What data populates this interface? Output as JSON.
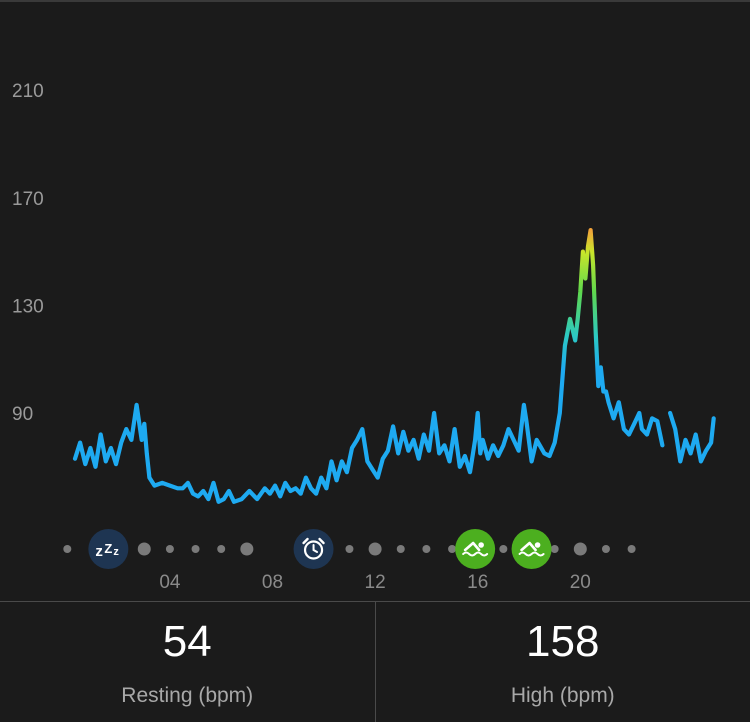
{
  "chart_data": {
    "type": "line",
    "y_ticks": [
      "210",
      "170",
      "130",
      "90"
    ],
    "y_tick_values": [
      210,
      170,
      130,
      90
    ],
    "x_ticks": [
      "04",
      "08",
      "12",
      "16",
      "20"
    ],
    "x_tick_hours": [
      4,
      8,
      12,
      16,
      20
    ],
    "ylim": [
      40,
      225
    ],
    "xlim_hours": [
      0,
      24
    ],
    "series": [
      {
        "segments": [
          [
            [
              0.3,
              73
            ],
            [
              0.5,
              79
            ],
            [
              0.7,
              71
            ],
            [
              0.9,
              77
            ],
            [
              1.1,
              70
            ],
            [
              1.3,
              82
            ],
            [
              1.5,
              72
            ],
            [
              1.7,
              77
            ],
            [
              1.9,
              71
            ],
            [
              2.1,
              79
            ],
            [
              2.3,
              84
            ],
            [
              2.5,
              80
            ],
            [
              2.7,
              93
            ],
            [
              2.9,
              80
            ],
            [
              3.0,
              86
            ],
            [
              3.1,
              75
            ],
            [
              3.2,
              66
            ],
            [
              3.4,
              63
            ],
            [
              3.7,
              64
            ],
            [
              4.0,
              63
            ],
            [
              4.3,
              62
            ],
            [
              4.5,
              62
            ],
            [
              4.7,
              64
            ],
            [
              4.9,
              60
            ],
            [
              5.1,
              59
            ],
            [
              5.3,
              61
            ],
            [
              5.5,
              58
            ],
            [
              5.7,
              64
            ],
            [
              5.9,
              57
            ],
            [
              6.1,
              58
            ],
            [
              6.3,
              61
            ],
            [
              6.5,
              57
            ],
            [
              6.8,
              58
            ],
            [
              7.1,
              61
            ],
            [
              7.4,
              58
            ],
            [
              7.7,
              62
            ],
            [
              7.9,
              60
            ],
            [
              8.1,
              63
            ],
            [
              8.3,
              59
            ],
            [
              8.5,
              64
            ],
            [
              8.7,
              61
            ],
            [
              8.9,
              62
            ],
            [
              9.1,
              60
            ],
            [
              9.3,
              66
            ],
            [
              9.5,
              62
            ],
            [
              9.7,
              60
            ],
            [
              9.9,
              66
            ],
            [
              10.1,
              62
            ],
            [
              10.3,
              72
            ],
            [
              10.5,
              65
            ],
            [
              10.7,
              72
            ],
            [
              10.9,
              68
            ],
            [
              11.1,
              77
            ],
            [
              11.3,
              80
            ],
            [
              11.5,
              84
            ],
            [
              11.7,
              72
            ],
            [
              11.9,
              69
            ],
            [
              12.1,
              66
            ],
            [
              12.3,
              73
            ],
            [
              12.5,
              76
            ],
            [
              12.7,
              85
            ],
            [
              12.9,
              75
            ],
            [
              13.1,
              83
            ],
            [
              13.3,
              76
            ],
            [
              13.5,
              80
            ],
            [
              13.7,
              73
            ],
            [
              13.9,
              82
            ],
            [
              14.1,
              76
            ],
            [
              14.3,
              90
            ],
            [
              14.5,
              75
            ],
            [
              14.7,
              78
            ],
            [
              14.9,
              72
            ],
            [
              15.1,
              84
            ],
            [
              15.3,
              70
            ],
            [
              15.5,
              74
            ],
            [
              15.7,
              68
            ],
            [
              15.9,
              80
            ],
            [
              16.0,
              90
            ],
            [
              16.1,
              75
            ],
            [
              16.2,
              80
            ],
            [
              16.4,
              73
            ],
            [
              16.6,
              78
            ],
            [
              16.8,
              74
            ],
            [
              17.0,
              78
            ],
            [
              17.2,
              84
            ],
            [
              17.4,
              80
            ],
            [
              17.6,
              76
            ],
            [
              17.8,
              93
            ],
            [
              17.9,
              87
            ],
            [
              18.1,
              72
            ],
            [
              18.3,
              80
            ],
            [
              18.6,
              75
            ],
            [
              18.8,
              74
            ],
            [
              19.0,
              79
            ],
            [
              19.2,
              90
            ],
            [
              19.4,
              115
            ],
            [
              19.6,
              125
            ],
            [
              19.8,
              117
            ],
            [
              19.9,
              125
            ],
            [
              20.0,
              135
            ],
            [
              20.1,
              150
            ],
            [
              20.2,
              140
            ],
            [
              20.3,
              152
            ],
            [
              20.4,
              158
            ],
            [
              20.5,
              145
            ],
            [
              20.6,
              120
            ],
            [
              20.7,
              100
            ],
            [
              20.8,
              107
            ],
            [
              20.9,
              98
            ],
            [
              21.0,
              98
            ],
            [
              21.1,
              94
            ],
            [
              21.3,
              88
            ],
            [
              21.5,
              94
            ],
            [
              21.7,
              84
            ],
            [
              21.9,
              82
            ],
            [
              22.1,
              86
            ],
            [
              22.3,
              90
            ],
            [
              22.4,
              84
            ],
            [
              22.6,
              82
            ],
            [
              22.8,
              88
            ],
            [
              23.0,
              87
            ],
            [
              23.2,
              78
            ]
          ],
          [
            [
              23.5,
              90
            ],
            [
              23.7,
              84
            ],
            [
              23.9,
              72
            ],
            [
              24.1,
              80
            ],
            [
              24.3,
              75
            ],
            [
              24.5,
              82
            ],
            [
              24.7,
              72
            ],
            [
              24.9,
              76
            ],
            [
              25.1,
              79
            ],
            [
              25.2,
              88
            ]
          ]
        ]
      }
    ],
    "stats": {
      "resting_value": "54",
      "resting_label": "Resting (bpm)",
      "high_value": "158",
      "high_label": "High (bpm)"
    },
    "activity_markers": [
      {
        "icon": "sleep-icon",
        "glyph": "zZz",
        "hour": 1.6,
        "color": "#1e3552"
      },
      {
        "icon": "alarm-clock-icon",
        "hour": 9.6,
        "color": "#1e3552"
      },
      {
        "icon": "swim-icon",
        "hour": 15.9,
        "color": "#4caf1f"
      },
      {
        "icon": "swim-icon",
        "hour": 18.1,
        "color": "#4caf1f"
      }
    ],
    "timeline_dots_hours": [
      0.0,
      3.0,
      4.0,
      5.0,
      6.0,
      7.0,
      11.0,
      12.0,
      13.0,
      14.0,
      15.0,
      17.0,
      19.0,
      20.0,
      21.0,
      22.0
    ],
    "timeline_big_dots_hours": [
      3.0,
      7.0,
      12.0,
      20.0
    ],
    "colors": {
      "line": "#1eaaf1",
      "gradient_low": "#1eaaf1",
      "gradient_mid": "#2dd39a",
      "gradient_high": "#bfe62a",
      "gradient_peak": "#f2a33a",
      "dot": "#7a7a7a",
      "background": "#1b1b1b"
    }
  }
}
